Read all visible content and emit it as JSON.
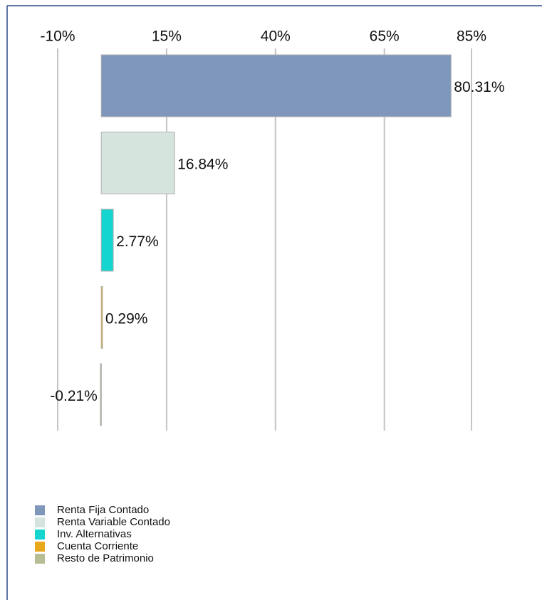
{
  "chart_data": {
    "type": "bar",
    "orientation": "horizontal",
    "categories": [
      "Renta Fija Contado",
      "Renta Variable Contado",
      "Inv. Alternativas",
      "Cuenta Corriente",
      "Resto de Patrimonio"
    ],
    "values": [
      80.31,
      16.84,
      2.77,
      0.29,
      -0.21
    ],
    "value_labels": [
      "80.31%",
      "16.84%",
      "2.77%",
      "0.29%",
      "-0.21%"
    ],
    "colors": [
      "#7f97bb",
      "#d6e4de",
      "#15d5d0",
      "#e9a81c",
      "#b8bc94"
    ],
    "xlim": [
      -10,
      85
    ],
    "xticks": [
      {
        "value": -10,
        "label": "-10%"
      },
      {
        "value": 15,
        "label": "15%"
      },
      {
        "value": 40,
        "label": "40%"
      },
      {
        "value": 65,
        "label": "65%"
      },
      {
        "value": 85,
        "label": "85%"
      }
    ],
    "grid": true
  }
}
